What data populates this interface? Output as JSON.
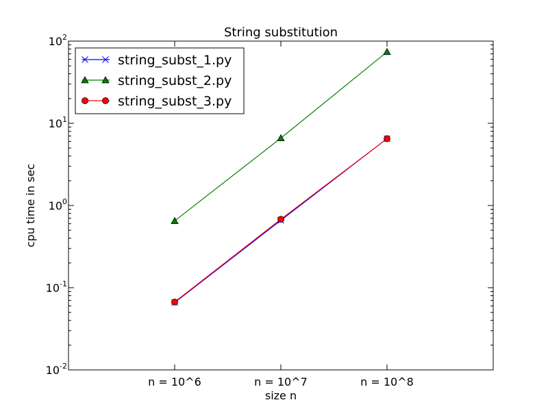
{
  "chart_data": {
    "type": "line",
    "title": "String substitution",
    "xlabel": "size n",
    "ylabel": "cpu time in sec",
    "categories": [
      "n = 10^6",
      "n = 10^7",
      "n = 10^8"
    ],
    "x_range": [
      0,
      4
    ],
    "y_scale": "log",
    "ylim": [
      0.01,
      100
    ],
    "y_ticks": [
      {
        "base": "10",
        "exp": "-2",
        "value": 0.01
      },
      {
        "base": "10",
        "exp": "-1",
        "value": 0.1
      },
      {
        "base": "10",
        "exp": "0",
        "value": 1
      },
      {
        "base": "10",
        "exp": "1",
        "value": 10
      },
      {
        "base": "10",
        "exp": "2",
        "value": 100
      }
    ],
    "grid": false,
    "legend_position": "top-left",
    "series": [
      {
        "name": "string_subst_1.py",
        "color": "#0000ff",
        "marker": "x",
        "values": [
          0.066,
          0.66,
          6.5
        ]
      },
      {
        "name": "string_subst_2.py",
        "color": "#008000",
        "marker": "triangle",
        "values": [
          0.65,
          6.6,
          74
        ]
      },
      {
        "name": "string_subst_3.py",
        "color": "#ff0000",
        "marker": "circle",
        "values": [
          0.067,
          0.68,
          6.5
        ]
      }
    ]
  }
}
